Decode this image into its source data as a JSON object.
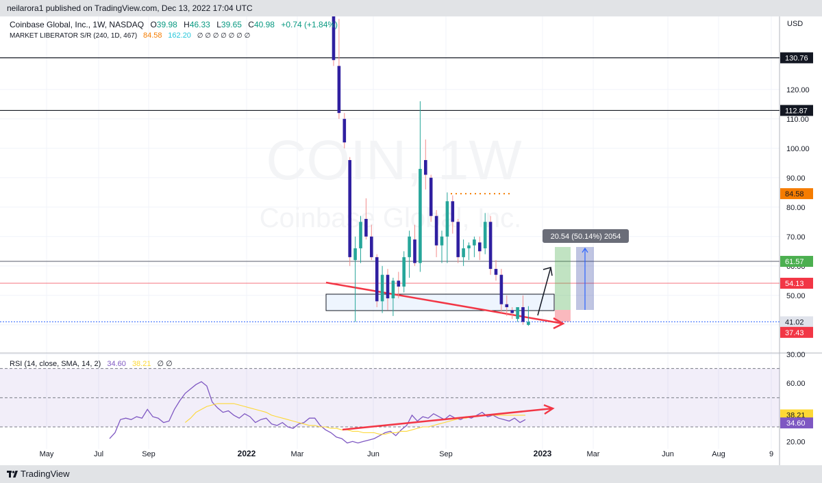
{
  "header": {
    "published": "neilarora1 published on TradingView.com, Dec 13, 2022 17:04 UTC"
  },
  "legend": {
    "symbol": "Coinbase Global, Inc., 1W, NASDAQ",
    "o_label": "O",
    "o": "39.98",
    "h_label": "H",
    "h": "46.33",
    "l_label": "L",
    "l": "39.65",
    "c_label": "C",
    "c": "40.98",
    "change": "+0.74 (+1.84%)",
    "indicator": "MARKET LIBERATOR S/R (240, 1D, 467)",
    "ind_v1": "84.58",
    "ind_v2": "162.20",
    "placeholders": "∅ ∅ ∅ ∅ ∅ ∅ ∅"
  },
  "rsi_legend": {
    "label": "RSI (14, close, SMA, 14, 2)",
    "value": "34.60",
    "ma_value": "38.21",
    "placeholders": "∅ ∅"
  },
  "watermark": {
    "line1": "COIN, 1W",
    "line2": "Coinbase Global, Inc."
  },
  "measure_label": "20.54 (50.14%) 2054",
  "footer": {
    "brand": "TradingView"
  },
  "colors": {
    "bull": "#26a69a",
    "bear": "#2f1fa0",
    "red": "#f23645",
    "orange": "#f57c00",
    "rsi_line": "#7e57c2",
    "rsi_ma": "#fdd835",
    "blue_line": "#2962ff",
    "green": "#4caf50"
  },
  "chart_data": {
    "type": "candlestick",
    "currency": "USD",
    "y_ticks": [
      30,
      40,
      50,
      60,
      70,
      80,
      90,
      100,
      110,
      120
    ],
    "ylim": [
      25,
      145
    ],
    "x_labels": [
      "May",
      "Jul",
      "Sep",
      "2022",
      "Mar",
      "Jun",
      "Sep",
      "2023",
      "Mar",
      "Jun",
      "Aug",
      "9"
    ],
    "levels": [
      {
        "price": 130.76,
        "label": "130.76",
        "kind": "black"
      },
      {
        "price": 112.87,
        "label": "112.87",
        "kind": "black"
      },
      {
        "price": 61.57,
        "label": "61.57",
        "kind": "green"
      },
      {
        "price": 54.13,
        "label": "54.13",
        "kind": "red"
      },
      {
        "price": 41.02,
        "label": "41.02",
        "kind": "blue"
      },
      {
        "price": 84.58,
        "label": "84.58",
        "kind": "orange"
      },
      {
        "price": 37.43,
        "label": "37.43",
        "kind": "red-box"
      }
    ],
    "candles": [
      {
        "o": 155,
        "h": 160,
        "l": 128,
        "c": 130
      },
      {
        "o": 128,
        "h": 144,
        "l": 110,
        "c": 112
      },
      {
        "o": 110,
        "h": 112,
        "l": 100,
        "c": 102
      },
      {
        "o": 96,
        "h": 97,
        "l": 60,
        "c": 63
      },
      {
        "o": 62,
        "h": 70,
        "l": 41,
        "c": 66
      },
      {
        "o": 66,
        "h": 77,
        "l": 61,
        "c": 75
      },
      {
        "o": 76,
        "h": 83,
        "l": 69,
        "c": 70
      },
      {
        "o": 70,
        "h": 74,
        "l": 62,
        "c": 63
      },
      {
        "o": 63,
        "h": 64,
        "l": 46,
        "c": 48
      },
      {
        "o": 48,
        "h": 60,
        "l": 44,
        "c": 57
      },
      {
        "o": 57,
        "h": 59,
        "l": 45,
        "c": 49
      },
      {
        "o": 49,
        "h": 56,
        "l": 43,
        "c": 55
      },
      {
        "o": 55,
        "h": 58,
        "l": 49,
        "c": 53
      },
      {
        "o": 53,
        "h": 65,
        "l": 51,
        "c": 63
      },
      {
        "o": 63,
        "h": 72,
        "l": 56,
        "c": 70
      },
      {
        "o": 69,
        "h": 74,
        "l": 60,
        "c": 61
      },
      {
        "o": 61,
        "h": 116,
        "l": 58,
        "c": 93
      },
      {
        "o": 96,
        "h": 103,
        "l": 86,
        "c": 91
      },
      {
        "o": 90,
        "h": 91,
        "l": 75,
        "c": 77
      },
      {
        "o": 77,
        "h": 79,
        "l": 63,
        "c": 67
      },
      {
        "o": 67,
        "h": 72,
        "l": 61,
        "c": 70
      },
      {
        "o": 70,
        "h": 85,
        "l": 61,
        "c": 82
      },
      {
        "o": 82,
        "h": 84,
        "l": 71,
        "c": 75
      },
      {
        "o": 75,
        "h": 76,
        "l": 61,
        "c": 63
      },
      {
        "o": 63,
        "h": 69,
        "l": 60,
        "c": 66
      },
      {
        "o": 66,
        "h": 68,
        "l": 62,
        "c": 67
      },
      {
        "o": 67,
        "h": 70,
        "l": 63,
        "c": 69
      },
      {
        "o": 68,
        "h": 70,
        "l": 62,
        "c": 65
      },
      {
        "o": 66,
        "h": 78,
        "l": 64,
        "c": 75
      },
      {
        "o": 75,
        "h": 77,
        "l": 57,
        "c": 59
      },
      {
        "o": 59,
        "h": 62,
        "l": 55,
        "c": 57
      },
      {
        "o": 57,
        "h": 59,
        "l": 44,
        "c": 47
      },
      {
        "o": 47,
        "h": 50,
        "l": 43,
        "c": 46
      },
      {
        "o": 45,
        "h": 46,
        "l": 42,
        "c": 44
      },
      {
        "o": 42,
        "h": 46,
        "l": 41,
        "c": 46
      },
      {
        "o": 46,
        "h": 50,
        "l": 40,
        "c": 41
      },
      {
        "o": 39.98,
        "h": 46.33,
        "l": 39.65,
        "c": 40.98
      }
    ],
    "rsi": {
      "ylim": [
        15,
        75
      ],
      "y_ticks": [
        20,
        60
      ],
      "upper_band": 70,
      "lower_band": 30,
      "mid": 50,
      "series": [
        {
          "name": "RSI",
          "values": [
            22,
            26,
            35,
            36,
            35,
            37,
            36,
            42,
            37,
            36,
            33,
            34,
            42,
            48,
            53,
            56,
            59,
            61,
            58,
            47,
            43,
            40,
            41,
            38,
            36,
            39,
            37,
            33,
            35,
            36,
            32,
            31,
            33,
            30,
            29,
            32,
            33,
            36,
            36,
            31,
            28,
            26,
            23,
            22,
            19,
            20,
            19,
            20,
            21,
            22,
            24,
            26,
            27,
            24,
            28,
            31,
            38,
            34,
            37,
            36,
            39,
            37,
            35,
            38,
            36,
            35,
            37,
            36,
            38,
            40,
            37,
            38,
            36,
            35,
            34,
            36,
            33,
            35
          ]
        },
        {
          "name": "MA",
          "values": [
            null,
            null,
            null,
            null,
            null,
            null,
            null,
            null,
            null,
            null,
            null,
            null,
            null,
            null,
            33,
            36,
            40,
            42,
            44,
            45,
            46,
            46,
            46,
            46,
            45,
            44,
            43,
            42,
            41,
            40,
            38,
            37,
            36,
            35,
            34,
            33,
            32,
            31,
            31,
            30,
            30,
            29,
            29,
            28,
            28,
            27,
            27,
            26,
            26,
            26,
            25,
            25,
            26,
            26,
            27,
            27,
            28,
            29,
            30,
            30,
            31,
            32,
            33,
            34,
            35,
            36,
            36,
            37,
            37,
            38,
            38,
            38,
            38,
            38,
            38,
            38,
            38,
            38
          ]
        }
      ]
    }
  }
}
